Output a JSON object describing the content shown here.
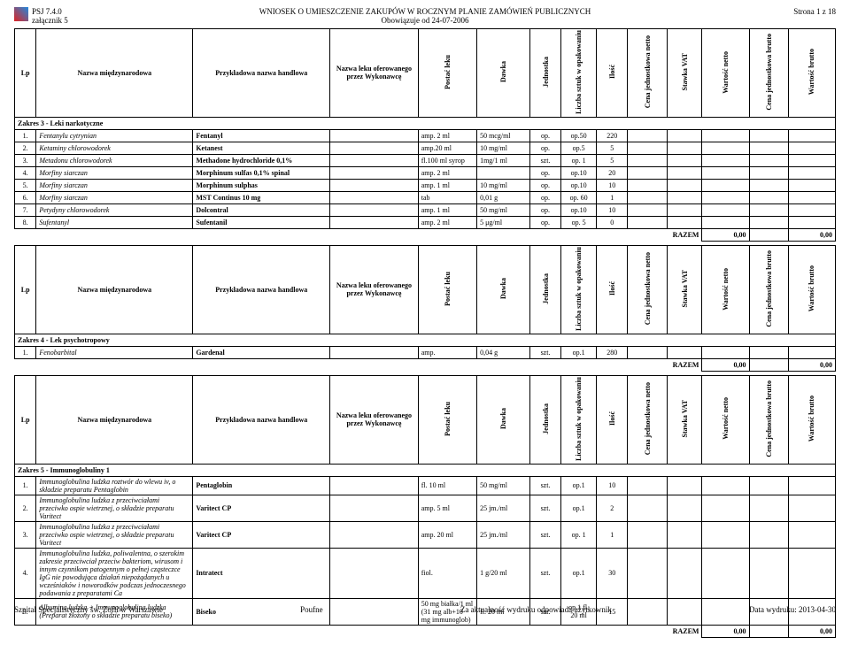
{
  "header": {
    "code": "PSJ 7.4.0",
    "attachment": "załącznik 5",
    "title": "WNIOSEK O UMIESZCZENIE ZAKUPÓW W ROCZNYM PLANIE ZAMÓWIEŃ PUBLICZNYCH",
    "subtitle": "Obowiązuje od 24-07-2006",
    "page_label": "Strona 1 z 18"
  },
  "columns": {
    "lp": "Lp",
    "intl": "Nazwa międzynarodowa",
    "handlowa": "Przykładowa nazwa handlowa",
    "oferowane": "Nazwa leku oferowanego przez Wykonawcę",
    "postac": "Postać leku",
    "dawka": "Dawka",
    "jednostka": "Jednostka",
    "liczba": "Liczba sztuk w opakowaniu",
    "ilosc": "Ilość",
    "cena_netto": "Cena jednostkowa netto",
    "stawka": "Stawka VAT",
    "wart_netto": "Wartość netto",
    "cena_brutto": "Cena jednostkowa brutto",
    "wart_brutto": "Wartość brutto"
  },
  "sections": [
    {
      "title": "Zakres 3 - Leki narkotyczne",
      "rows": [
        {
          "lp": "1.",
          "intl": "Fentanylu cytrynian",
          "handlowa": "Fentanyl",
          "postac": "amp. 2 ml",
          "dawka": "50 mcg/ml",
          "jednostka": "op.",
          "liczba": "op.50",
          "ilosc": "220"
        },
        {
          "lp": "2.",
          "intl": "Ketaminy chlorowodorek",
          "handlowa": "Ketanest",
          "postac": "amp.20 ml",
          "dawka": "10 mg/ml",
          "jednostka": "op.",
          "liczba": "op.5",
          "ilosc": "5"
        },
        {
          "lp": "3.",
          "intl": "Metadonu chlorowodorek",
          "handlowa": "Methadone hydrochloride 0,1%",
          "postac": "fl.100 ml syrop",
          "dawka": "1mg/1 ml",
          "jednostka": "szt.",
          "liczba": "op. 1",
          "ilosc": "5"
        },
        {
          "lp": "4.",
          "intl": "Morfiny siarczan",
          "handlowa": "Morphinum sulfas 0,1% spinal",
          "postac": "amp. 2 ml",
          "dawka": "",
          "jednostka": "op.",
          "liczba": "op.10",
          "ilosc": "20"
        },
        {
          "lp": "5.",
          "intl": "Morfiny siarczan",
          "handlowa": "Morphinum sulphas",
          "postac": "amp. 1 ml",
          "dawka": "10 mg/ml",
          "jednostka": "op.",
          "liczba": "op.10",
          "ilosc": "10"
        },
        {
          "lp": "6.",
          "intl": "Morfiny siarczan",
          "handlowa": "MST Continus 10 mg",
          "postac": "tab",
          "dawka": "0,01 g",
          "jednostka": "op.",
          "liczba": "op. 60",
          "ilosc": "1"
        },
        {
          "lp": "7.",
          "intl": "Petydyny chlorowodorek",
          "handlowa": "Dolcontral",
          "postac": "amp. 1 ml",
          "dawka": "50 mg/ml",
          "jednostka": "op.",
          "liczba": "op.10",
          "ilosc": "10"
        },
        {
          "lp": "8.",
          "intl": "Sufentanyl",
          "handlowa": "Sufentanil",
          "postac": "amp. 2 ml",
          "dawka": "5 μg/ml",
          "jednostka": "op.",
          "liczba": "op. 5",
          "ilosc": "0"
        }
      ],
      "razem": {
        "label": "RAZEM",
        "netto": "0,00",
        "brutto": "0,00"
      }
    },
    {
      "title": "Zakres 4 - Lek psychotropowy",
      "rows": [
        {
          "lp": "1.",
          "intl": "Fenobarbital",
          "handlowa": "Gardenal",
          "postac": "amp.",
          "dawka": "0,04 g",
          "jednostka": "szt.",
          "liczba": "op.1",
          "ilosc": "280"
        }
      ],
      "razem": {
        "label": "RAZEM",
        "netto": "0,00",
        "brutto": "0,00"
      }
    },
    {
      "title": "Zakres 5 - Immunoglobuliny 1",
      "rows": [
        {
          "lp": "1.",
          "intl": "Immunoglobulina ludzka roztwór do wlewu iv, o składzie preparatu Pentaglobin",
          "handlowa": "Pentaglobin",
          "postac": "fl. 10 ml",
          "dawka": "50 mg/ml",
          "jednostka": "szt.",
          "liczba": "op.1",
          "ilosc": "10"
        },
        {
          "lp": "2.",
          "intl": "Immunoglobulina ludzka z przeciwciałami przeciwko ospie wietrznej, o składzie preparatu Varitect",
          "handlowa": "Varitect CP",
          "postac": "amp. 5 ml",
          "dawka": "25 jm./ml",
          "jednostka": "szt.",
          "liczba": "op.1",
          "ilosc": "2"
        },
        {
          "lp": "3.",
          "intl": "Immunoglobulina ludzka z przeciwciałami przeciwko ospie wietrznej, o składzie preparatu Varitect",
          "handlowa": "Varitect CP",
          "postac": "amp. 20 ml",
          "dawka": "25 jm./ml",
          "jednostka": "szt.",
          "liczba": "op. 1",
          "ilosc": "1"
        },
        {
          "lp": "4.",
          "intl": "Immunoglobulina ludzka, poliwalentna, o szerokim zakresie przeciwciał przeciw bakteriom, wirusom i innym czynnikom patogennym o pełnej cząsteczce IgG nie powodująca działań niepożądanych u wcześniaków i noworodków podczas jednoczesnego podawania z preparatami Ca",
          "handlowa": "Intratect",
          "postac": "fiol.",
          "dawka": "1 g/20 ml",
          "jednostka": "szt.",
          "liczba": "op.1",
          "ilosc": "30"
        },
        {
          "lp": "5.",
          "intl": "Albumina ludzka + Immunoglobulina ludzka (Preparat złożony o składzie preparatu biseko)",
          "handlowa": "Biseko",
          "postac": "50 mg białka/1 ml (31 mg alb+10 mg immunoglob)",
          "dawka": "fl. 20 ml",
          "jednostka": "szt.",
          "liczba": "op.1 fl. 20 ml",
          "ilosc": "15"
        }
      ],
      "razem": {
        "label": "RAZEM",
        "netto": "0,00",
        "brutto": "0,00"
      }
    }
  ],
  "footer": {
    "left": "Szpital Specjalistyczny św. Zofii w Warszawie",
    "center": "Poufne",
    "resp": "Za aktualność wydruku odpowiada użytkownik",
    "date": "Data wydruku: 2013-04-30"
  }
}
